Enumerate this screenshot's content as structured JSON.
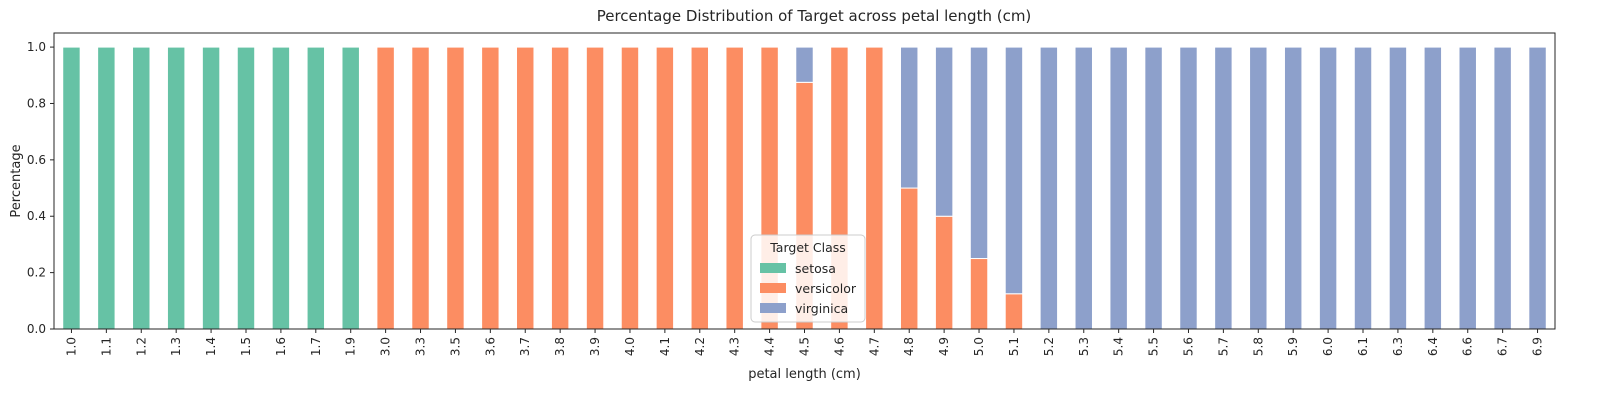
{
  "chart_data": {
    "type": "bar",
    "stacked": true,
    "title": "Percentage Distribution of Target across petal length (cm)",
    "xlabel": "petal length (cm)",
    "ylabel": "Percentage",
    "ylim": [
      0,
      1.05
    ],
    "yticks": [
      "0.0",
      "0.2",
      "0.4",
      "0.6",
      "0.8",
      "1.0"
    ],
    "grid": false,
    "legend": {
      "title": "Target Class",
      "placement": "bottom-center"
    },
    "categories": [
      "1.0",
      "1.1",
      "1.2",
      "1.3",
      "1.4",
      "1.5",
      "1.6",
      "1.7",
      "1.9",
      "3.0",
      "3.3",
      "3.5",
      "3.6",
      "3.7",
      "3.8",
      "3.9",
      "4.0",
      "4.1",
      "4.2",
      "4.3",
      "4.4",
      "4.5",
      "4.6",
      "4.7",
      "4.8",
      "4.9",
      "5.0",
      "5.1",
      "5.2",
      "5.3",
      "5.4",
      "5.5",
      "5.6",
      "5.7",
      "5.8",
      "5.9",
      "6.0",
      "6.1",
      "6.3",
      "6.4",
      "6.6",
      "6.7",
      "6.9"
    ],
    "series": [
      {
        "name": "setosa",
        "color": "#66c2a5",
        "values": [
          1,
          1,
          1,
          1,
          1,
          1,
          1,
          1,
          1,
          0,
          0,
          0,
          0,
          0,
          0,
          0,
          0,
          0,
          0,
          0,
          0,
          0,
          0,
          0,
          0,
          0,
          0,
          0,
          0,
          0,
          0,
          0,
          0,
          0,
          0,
          0,
          0,
          0,
          0,
          0,
          0,
          0,
          0
        ]
      },
      {
        "name": "versicolor",
        "color": "#fc8d62",
        "values": [
          0,
          0,
          0,
          0,
          0,
          0,
          0,
          0,
          0,
          1,
          1,
          1,
          1,
          1,
          1,
          1,
          1,
          1,
          1,
          1,
          1,
          0.875,
          1,
          1,
          0.5,
          0.4,
          0.25,
          0.125,
          0,
          0,
          0,
          0,
          0,
          0,
          0,
          0,
          0,
          0,
          0,
          0,
          0,
          0,
          0
        ]
      },
      {
        "name": "virginica",
        "color": "#8da0cb",
        "values": [
          0,
          0,
          0,
          0,
          0,
          0,
          0,
          0,
          0,
          0,
          0,
          0,
          0,
          0,
          0,
          0,
          0,
          0,
          0,
          0,
          0,
          0.125,
          0,
          0,
          0.5,
          0.6,
          0.75,
          0.875,
          1,
          1,
          1,
          1,
          1,
          1,
          1,
          1,
          1,
          1,
          1,
          1,
          1,
          1,
          1
        ]
      }
    ]
  }
}
